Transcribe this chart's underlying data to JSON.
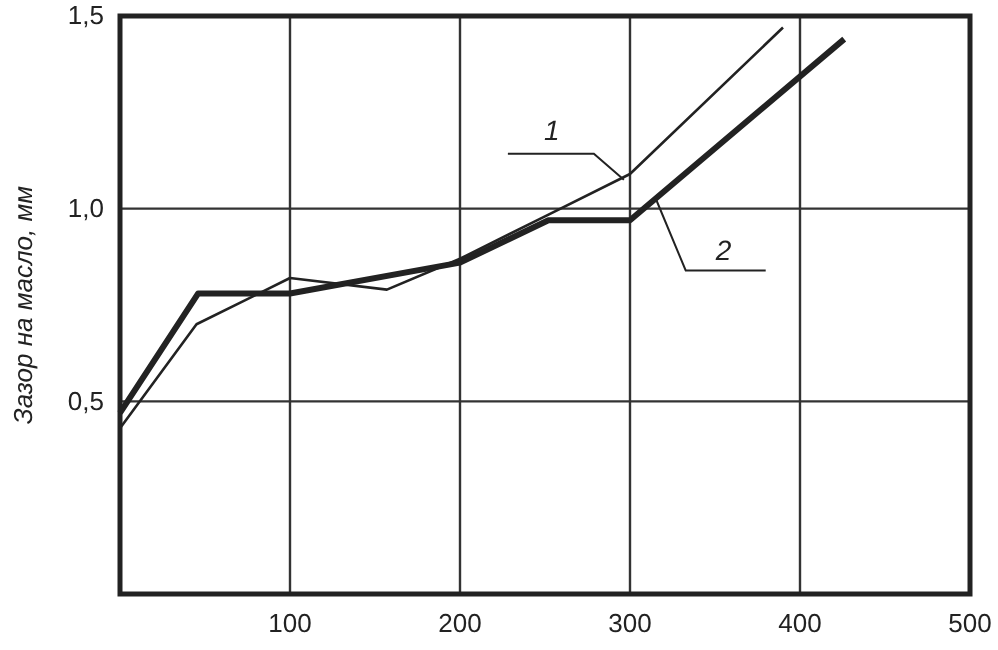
{
  "chart_data": {
    "type": "line",
    "ylabel": "Зазор на масло, мм",
    "xlim": [
      0,
      500
    ],
    "xticks": [
      100,
      200,
      300,
      400,
      500
    ],
    "ylim": [
      0,
      1.5
    ],
    "yticks": [
      {
        "value": 0.5,
        "label": "0,5"
      },
      {
        "value": 1.0,
        "label": "1,0"
      },
      {
        "value": 1.5,
        "label": "1,5"
      }
    ],
    "grid": true,
    "marker": "none",
    "line_style": "solid",
    "series": [
      {
        "name": "1",
        "color": "#222222",
        "x": [
          0,
          45,
          100,
          157,
          200,
          250,
          300,
          390
        ],
        "values": [
          0.43,
          0.7,
          0.82,
          0.79,
          0.87,
          0.98,
          1.09,
          1.47
        ]
      },
      {
        "name": "2",
        "color": "#222222",
        "x": [
          0,
          46,
          100,
          200,
          252,
          300,
          426
        ],
        "values": [
          0.47,
          0.78,
          0.78,
          0.86,
          0.97,
          0.97,
          1.44
        ]
      }
    ]
  }
}
